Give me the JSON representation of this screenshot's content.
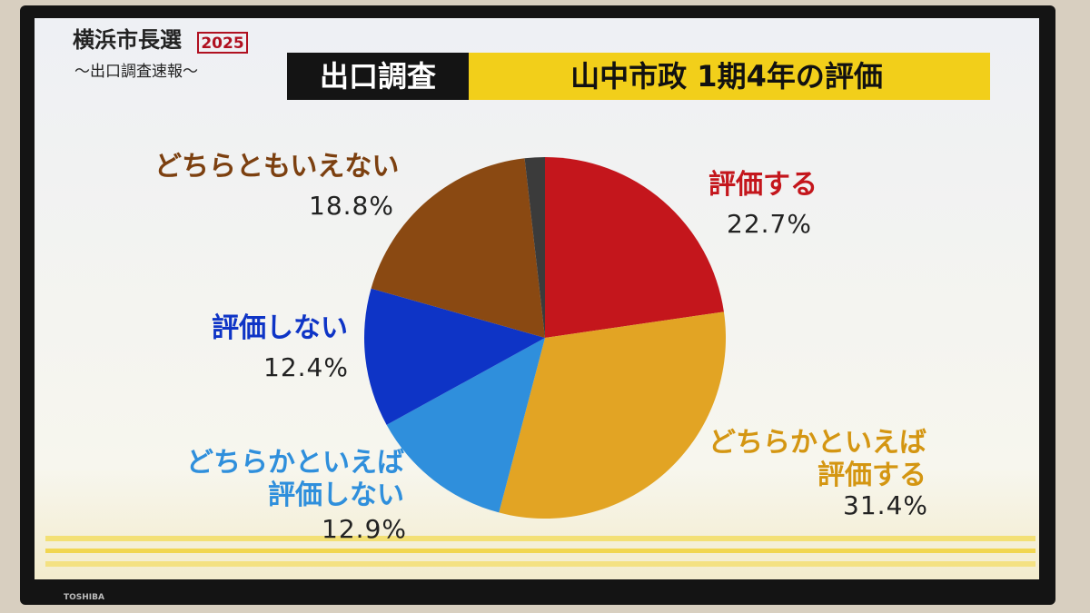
{
  "chart_data": {
    "type": "pie",
    "program_title": "横浜市長選",
    "program_year": "2025",
    "program_subtitle": "〜出口調査速報〜",
    "badge": "出口調査",
    "title": "山中市政 1期4年の評価",
    "categories": [
      "評価する",
      "どちらかといえば\n評価する",
      "どちらかといえば\n評価しない",
      "評価しない",
      "どちらともいえない",
      null
    ],
    "values": [
      22.7,
      31.4,
      12.9,
      12.4,
      18.8,
      1.8
    ],
    "value_labels": [
      "22.7%",
      "31.4%",
      "12.9%",
      "12.4%",
      "18.8%",
      null
    ],
    "colors": [
      "#c4161c",
      "#e2a424",
      "#2f8fdc",
      "#0e34c6",
      "#8a4912",
      "#3b3b3b"
    ],
    "label_colors": [
      "#c4161c",
      "#d49612",
      "#2f8fdc",
      "#0e34c6",
      "#7c4010",
      null
    ]
  },
  "brand": "TOSHIBA"
}
